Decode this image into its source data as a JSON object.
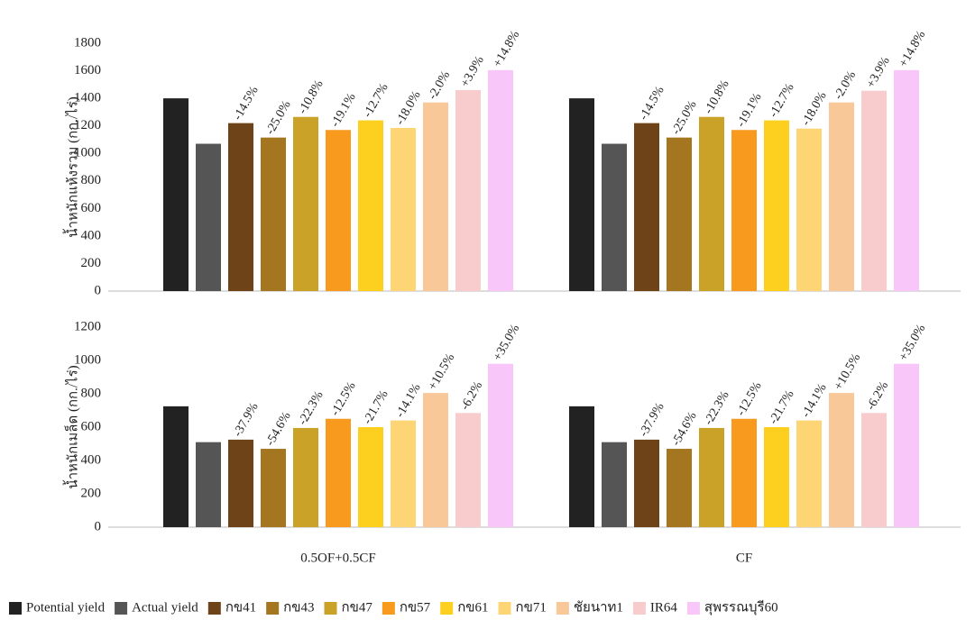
{
  "chart_data": [
    {
      "type": "bar",
      "y_label": "น้ำหนักแห้งรวม (กก./ไร่)",
      "ylim": [
        0,
        1800
      ],
      "yticks": [
        0,
        200,
        400,
        600,
        800,
        1000,
        1200,
        1400,
        1600,
        1800
      ],
      "series": [
        {
          "name": "Potential yield",
          "color": "#222222",
          "values": [
            1400,
            1400
          ]
        },
        {
          "name": "Actual yield",
          "color": "#555555",
          "values": [
            1070,
            1070
          ]
        },
        {
          "name": "กข41",
          "color": "#6e4317",
          "values": [
            1220,
            1220
          ],
          "value_labels": [
            "-14.5%",
            "-14.5%"
          ]
        },
        {
          "name": "กข43",
          "color": "#a4761f",
          "values": [
            1115,
            1115
          ],
          "value_labels": [
            "-25.0%",
            "-25.0%"
          ]
        },
        {
          "name": "กข47",
          "color": "#c9a227",
          "values": [
            1265,
            1265
          ],
          "value_labels": [
            "-10.8%",
            "-10.8%"
          ]
        },
        {
          "name": "กข57",
          "color": "#f79a1e",
          "values": [
            1170,
            1170
          ],
          "value_labels": [
            "-19.1%",
            "-19.1%"
          ]
        },
        {
          "name": "กข61",
          "color": "#fdd020",
          "values": [
            1240,
            1240
          ],
          "value_labels": [
            "-12.7%",
            "-12.7%"
          ]
        },
        {
          "name": "กข71",
          "color": "#fdd574",
          "values": [
            1185,
            1180
          ],
          "value_labels": [
            "-18.0%",
            "-18.0%"
          ]
        },
        {
          "name": "ชัยนาท1",
          "color": "#f8c899",
          "values": [
            1370,
            1370
          ],
          "value_labels": [
            "-2.0%",
            "-2.0%"
          ]
        },
        {
          "name": "IR64",
          "color": "#f8cccc",
          "values": [
            1460,
            1455
          ],
          "value_labels": [
            "+3.9%",
            "+3.9%"
          ]
        },
        {
          "name": "สุพรรณบุรี60",
          "color": "#f9c6f9",
          "values": [
            1605,
            1605
          ],
          "value_labels": [
            "+14.8%",
            "+14.8%"
          ]
        }
      ]
    },
    {
      "type": "bar",
      "y_label": "น้ำหนักเมล็ด (กก./ไร่)",
      "categories": [
        "0.5OF+0.5CF",
        "CF"
      ],
      "ylim": [
        0,
        1200
      ],
      "yticks": [
        0,
        200,
        400,
        600,
        800,
        1000,
        1200
      ],
      "series": [
        {
          "color": "#222222",
          "values": [
            725,
            725
          ]
        },
        {
          "color": "#555555",
          "values": [
            510,
            510
          ]
        },
        {
          "color": "#6e4317",
          "values": [
            525,
            525
          ],
          "value_labels": [
            "-37.9%",
            "-37.9%"
          ]
        },
        {
          "color": "#a4761f",
          "values": [
            470,
            470
          ],
          "value_labels": [
            "-54.6%",
            "-54.6%"
          ]
        },
        {
          "color": "#c9a227",
          "values": [
            595,
            595
          ],
          "value_labels": [
            "-22.3%",
            "-22.3%"
          ]
        },
        {
          "color": "#f79a1e",
          "values": [
            650,
            650
          ],
          "value_labels": [
            "-12.5%",
            "-12.5%"
          ]
        },
        {
          "color": "#fdd020",
          "values": [
            600,
            600
          ],
          "value_labels": [
            "-21.7%",
            "-21.7%"
          ]
        },
        {
          "color": "#fdd574",
          "values": [
            640,
            640
          ],
          "value_labels": [
            "-14.1%",
            "-14.1%"
          ]
        },
        {
          "color": "#f8c899",
          "values": [
            805,
            805
          ],
          "value_labels": [
            "+10.5%",
            "+10.5%"
          ]
        },
        {
          "color": "#f8cccc",
          "values": [
            685,
            685
          ],
          "value_labels": [
            "-6.2%",
            "-6.2%"
          ]
        },
        {
          "color": "#f9c6f9",
          "values": [
            980,
            980
          ],
          "value_labels": [
            "+35.0%",
            "+35.0%"
          ]
        }
      ]
    }
  ]
}
